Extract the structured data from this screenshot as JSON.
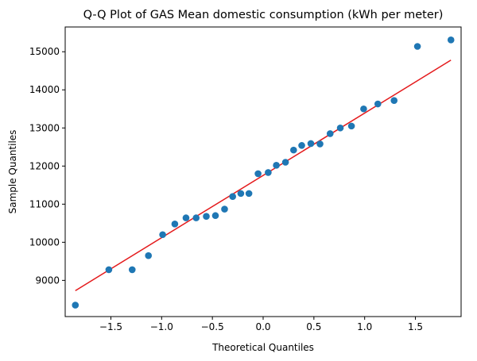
{
  "chart_data": {
    "type": "scatter",
    "title": "Q-Q Plot of GAS Mean domestic consumption (kWh per meter)",
    "xlabel": "Theoretical Quantiles",
    "ylabel": "Sample Quantiles",
    "xlim": [
      -1.95,
      1.95
    ],
    "ylim": [
      8050,
      15650
    ],
    "xticks": [
      -1.5,
      -1.0,
      -0.5,
      0.0,
      0.5,
      1.0,
      1.5
    ],
    "xtick_labels": [
      "−1.5",
      "−1.0",
      "−0.5",
      "0.0",
      "0.5",
      "1.0",
      "1.5"
    ],
    "yticks": [
      9000,
      10000,
      11000,
      12000,
      13000,
      14000,
      15000
    ],
    "ytick_labels": [
      "9000",
      "10000",
      "11000",
      "12000",
      "13000",
      "14000",
      "15000"
    ],
    "grid": false,
    "series": [
      {
        "kind": "points",
        "color": "#1f77b4",
        "x": [
          -1.85,
          -1.52,
          -1.29,
          -1.13,
          -0.99,
          -0.87,
          -0.76,
          -0.66,
          -0.56,
          -0.47,
          -0.38,
          -0.3,
          -0.22,
          -0.14,
          -0.05,
          0.05,
          0.13,
          0.22,
          0.3,
          0.38,
          0.47,
          0.56,
          0.66,
          0.76,
          0.87,
          0.99,
          1.13,
          1.29,
          1.52,
          1.85
        ],
        "y": [
          8350,
          9280,
          9280,
          9650,
          10200,
          10480,
          10640,
          10640,
          10680,
          10700,
          10870,
          11200,
          11280,
          11280,
          11800,
          11830,
          12020,
          12100,
          12420,
          12540,
          12590,
          12580,
          12850,
          13000,
          13050,
          13500,
          13630,
          13720,
          15140,
          15310
        ]
      },
      {
        "kind": "line",
        "color": "#e41a1c",
        "x": [
          -1.85,
          1.85
        ],
        "y": [
          8730,
          14780
        ]
      }
    ]
  }
}
